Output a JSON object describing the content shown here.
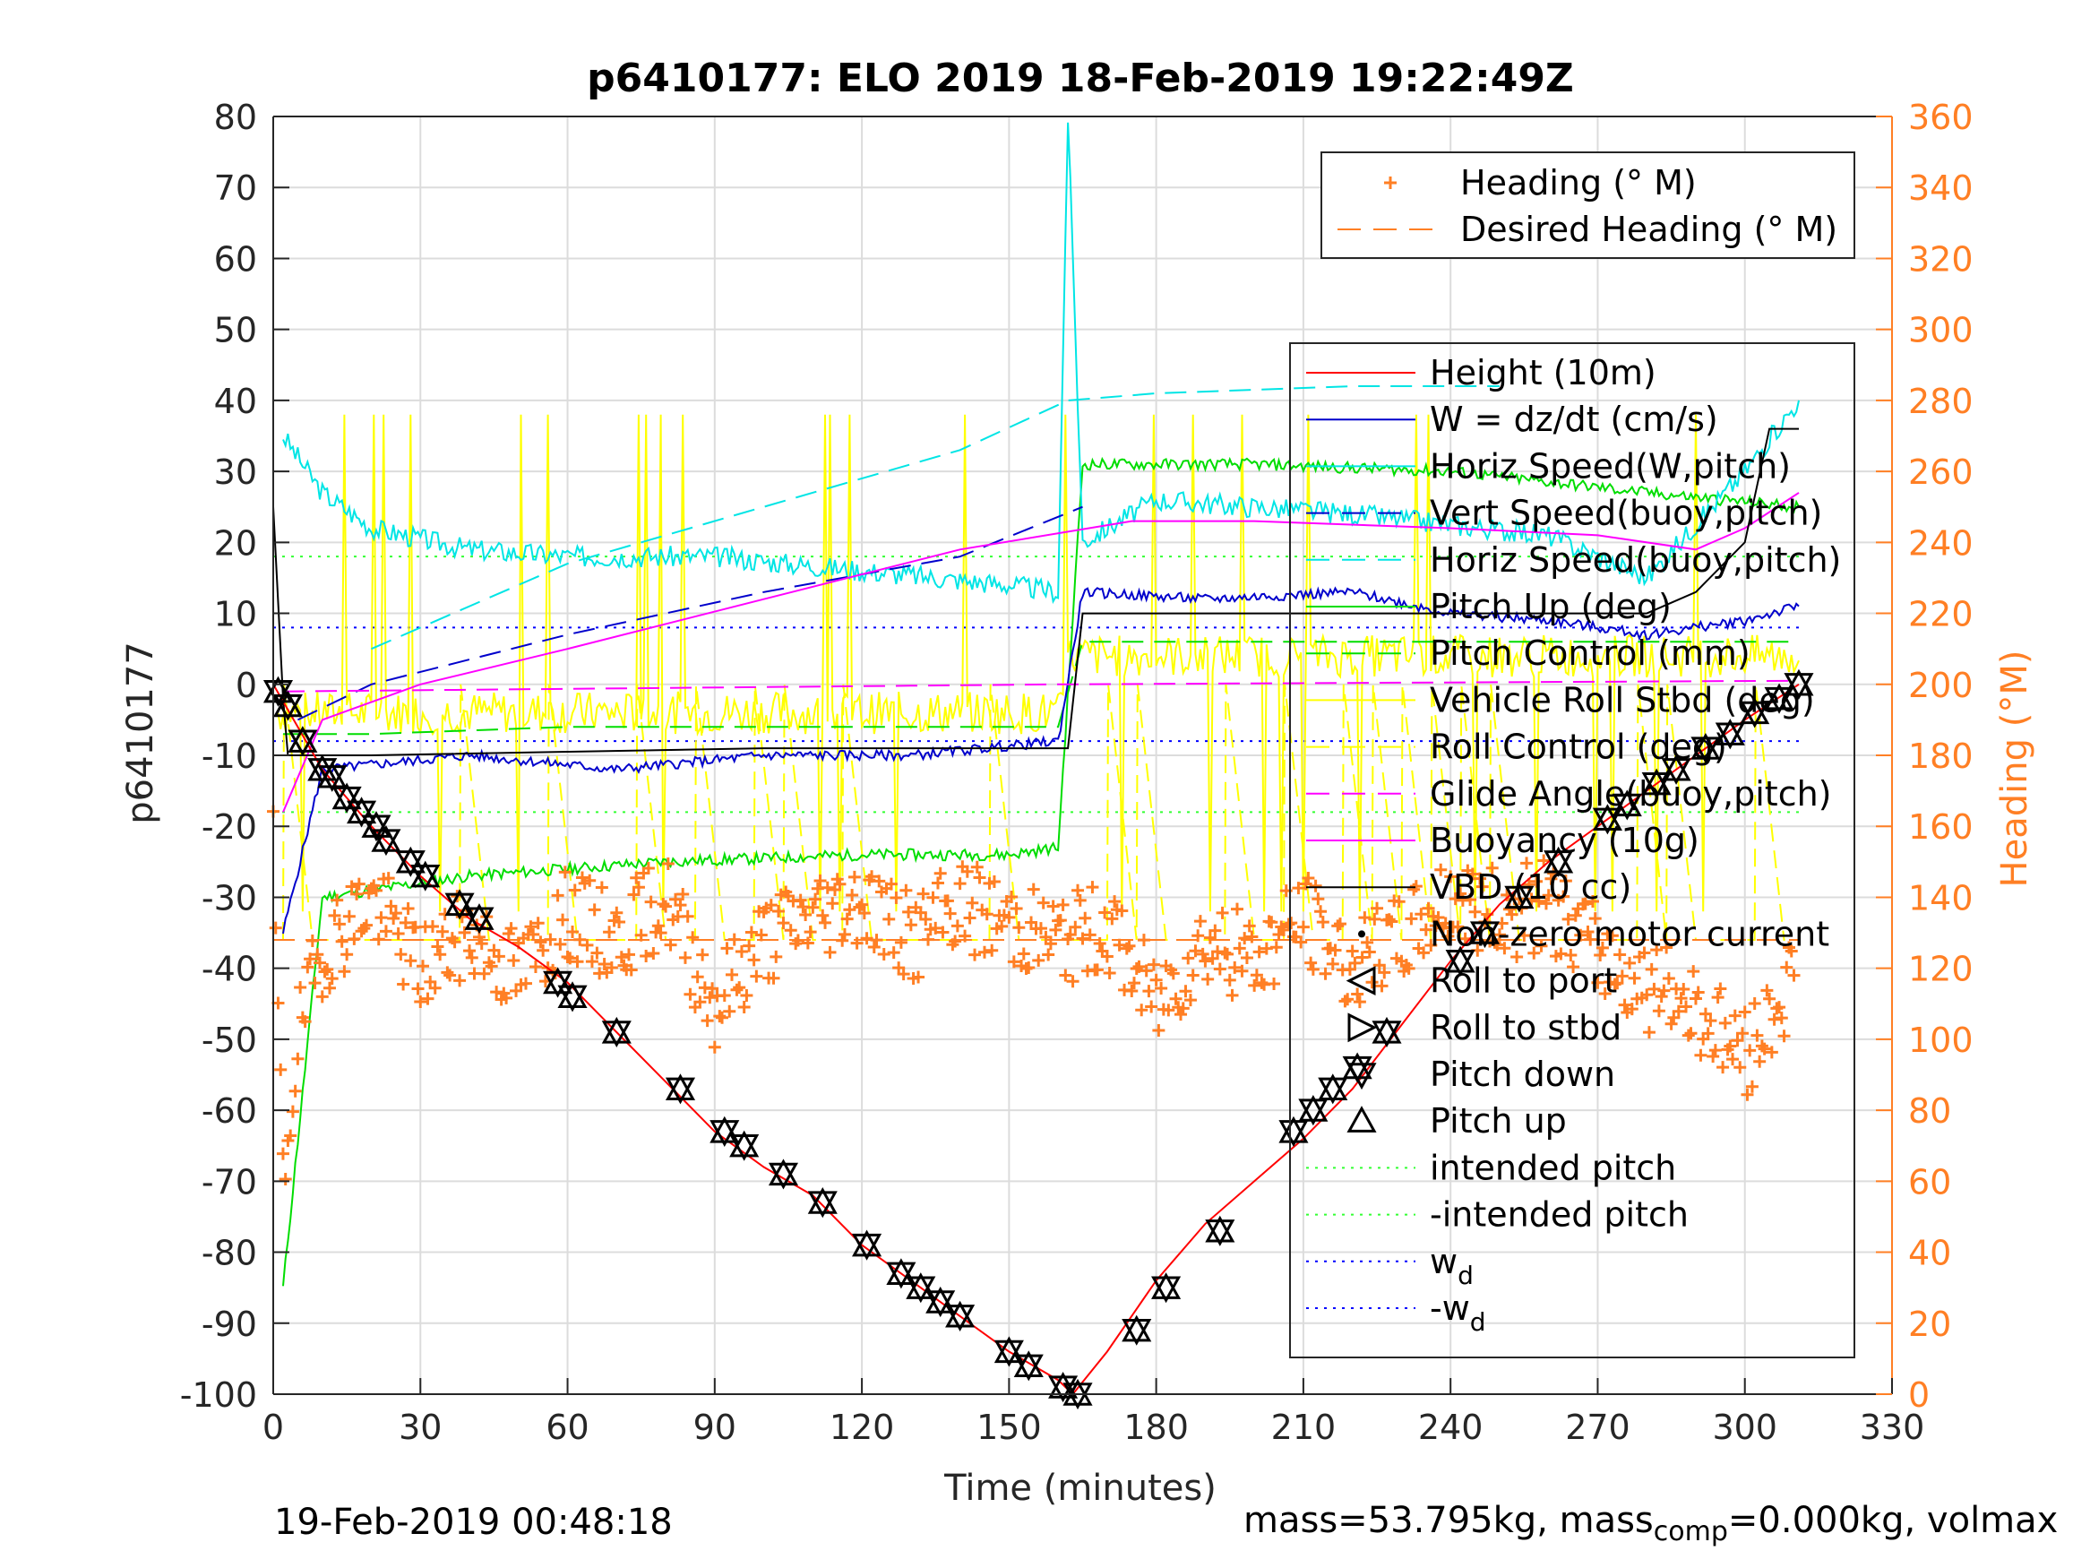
{
  "chart_data": {
    "type": "line",
    "title": "p6410177: ELO 2019 18-Feb-2019 19:22:49Z",
    "xlabel": "Time (minutes)",
    "ylabel_left": "p6410177",
    "ylabel_right": "Heading (°M)",
    "xlim": [
      0,
      330
    ],
    "ylim_left": [
      -100,
      80
    ],
    "ylim_right": [
      0,
      360
    ],
    "x_ticks": [
      0,
      30,
      60,
      90,
      120,
      150,
      180,
      210,
      240,
      270,
      300,
      330
    ],
    "y_left_ticks": [
      -100,
      -90,
      -80,
      -70,
      -60,
      -50,
      -40,
      -30,
      -20,
      -10,
      0,
      10,
      20,
      30,
      40,
      50,
      60,
      70,
      80
    ],
    "y_right_ticks": [
      0,
      20,
      40,
      60,
      80,
      100,
      120,
      140,
      160,
      180,
      200,
      220,
      240,
      260,
      280,
      300,
      320,
      340,
      360
    ],
    "grid": true,
    "colors": {
      "orange": "#FF7F24",
      "red": "#FF0000",
      "blue": "#0000CC",
      "cyan": "#00E5E5",
      "green": "#00DD00",
      "yellow": "#FFFF00",
      "magenta": "#FF00FF",
      "black": "#000000",
      "dot_green": "#33FF33",
      "dot_blue": "#0000FF"
    },
    "legend_top": {
      "placement": "top-right",
      "entries": [
        "Heading (° M)",
        "Desired Heading (° M)"
      ]
    },
    "legend_main": {
      "placement": "right",
      "entries": [
        {
          "label": "Height (10m)"
        },
        {
          "label": "W = dz/dt (cm/s)"
        },
        {
          "label": "Horiz Speed(W,pitch)"
        },
        {
          "label": "Vert Speed(buoy,pitch)"
        },
        {
          "label": "Horiz Speed(buoy,pitch)"
        },
        {
          "label": "Pitch Up (deg)"
        },
        {
          "label": "Pitch Control (mm)"
        },
        {
          "label": "Vehicle Roll Stbd (deg)"
        },
        {
          "label": "Roll Control (deg)"
        },
        {
          "label": "Glide Angle(buoy,pitch)"
        },
        {
          "label": "Buoyancy (10g)"
        },
        {
          "label": "VBD (10 cc)"
        },
        {
          "label": "Non-zero motor current"
        },
        {
          "label": "Roll to port"
        },
        {
          "label": "Roll to stbd"
        },
        {
          "label": "Pitch down"
        },
        {
          "label": "Pitch up"
        },
        {
          "label": "intended pitch"
        },
        {
          "label": "-intended pitch"
        },
        {
          "label": "w",
          "sub": "d"
        },
        {
          "label": "-w",
          "sub": "d"
        }
      ]
    },
    "series": [
      {
        "name": "Height (10m)",
        "x": [
          0,
          10,
          20,
          30,
          40,
          50,
          60,
          70,
          80,
          90,
          100,
          110,
          120,
          130,
          140,
          150,
          160,
          163,
          170,
          180,
          190,
          200,
          210,
          220,
          230,
          240,
          250,
          260,
          270,
          280,
          290,
          300,
          311
        ],
        "y": [
          0,
          -12,
          -20,
          -27,
          -33,
          -37,
          -42,
          -49,
          -56,
          -63,
          -68,
          -72,
          -79,
          -84,
          -89,
          -94,
          -98,
          -100,
          -94,
          -84,
          -76,
          -70,
          -64,
          -57,
          -48,
          -39,
          -31,
          -25,
          -20,
          -15,
          -10,
          -5,
          0
        ]
      },
      {
        "name": "Vert Speed(buoy,pitch)",
        "x": [
          5,
          20,
          60,
          100,
          140,
          165
        ],
        "y": [
          -5,
          0,
          7,
          13,
          18,
          25
        ]
      },
      {
        "name": "Horiz Speed(buoy,pitch) dashed",
        "x": [
          20,
          60,
          100,
          140,
          162,
          180,
          220,
          250
        ],
        "y": [
          5,
          17,
          25,
          33,
          40,
          41,
          42,
          42
        ]
      },
      {
        "name": "Buoyancy (10g)",
        "x": [
          2,
          10,
          30,
          60,
          100,
          140,
          175,
          200,
          240,
          270,
          290,
          300,
          311
        ],
        "y": [
          -18,
          -5,
          0,
          5,
          12,
          19,
          23,
          23,
          22,
          21,
          19,
          22,
          27
        ]
      },
      {
        "name": "Glide Angle(buoy,pitch)",
        "x": [
          2,
          160,
          310
        ],
        "y": [
          -1,
          0,
          0.5
        ]
      },
      {
        "name": "VBD (10 cc)",
        "x": [
          0,
          2,
          3,
          20,
          60,
          100,
          162,
          165,
          200,
          280,
          290,
          300,
          305,
          311
        ],
        "y": [
          25,
          -2,
          -10,
          -10,
          -9.5,
          -9,
          -9,
          10,
          10,
          10,
          13,
          20,
          36,
          36
        ]
      },
      {
        "name": "W = dz/dt (cm/s)",
        "x": [
          2,
          10,
          40,
          70,
          100,
          130,
          160,
          165,
          190,
          220,
          240,
          260,
          280,
          300,
          311
        ],
        "y": [
          -35,
          -12,
          -10,
          -12,
          -10,
          -10,
          -8,
          13,
          12,
          13,
          10,
          9,
          7,
          9,
          11
        ]
      },
      {
        "name": "Horiz Speed(W,pitch)",
        "x": [
          2,
          10,
          20,
          40,
          60,
          90,
          120,
          150,
          160,
          162,
          165,
          180,
          220,
          260,
          280,
          300,
          311
        ],
        "y": [
          35,
          27,
          22,
          19,
          18,
          18,
          16,
          14,
          13,
          80,
          20,
          26,
          24,
          21,
          15,
          30,
          40
        ]
      },
      {
        "name": "Pitch Up (deg)",
        "x": [
          2,
          10,
          40,
          80,
          120,
          150,
          160,
          165,
          200,
          240,
          280,
          311
        ],
        "y": [
          -85,
          -30,
          -27,
          -25,
          -24,
          -24,
          -23,
          31,
          31,
          30,
          27,
          25
        ]
      },
      {
        "name": "Pitch Control (mm)",
        "x": [
          2,
          20,
          60,
          100,
          160,
          165,
          220,
          311
        ],
        "y": [
          -7,
          -7,
          -6,
          -6,
          -6,
          6,
          6,
          6
        ]
      },
      {
        "name": "Heading (° M)",
        "x": [
          0,
          2,
          5,
          10,
          20,
          30,
          40,
          50,
          60,
          70,
          80,
          90,
          100,
          110,
          120,
          130,
          140,
          150,
          160,
          170,
          180,
          190,
          200,
          210,
          220,
          230,
          240,
          250,
          260,
          270,
          280,
          290,
          300,
          310
        ],
        "y": [
          152,
          60,
          100,
          125,
          140,
          120,
          130,
          118,
          135,
          128,
          140,
          110,
          128,
          135,
          140,
          128,
          138,
          133,
          128,
          132,
          110,
          128,
          122,
          135,
          120,
          128,
          140,
          135,
          138,
          125,
          115,
          110,
          95,
          118
        ]
      },
      {
        "name": "Desired Heading (° M)",
        "x": [
          0,
          311
        ],
        "y": [
          128,
          128
        ]
      }
    ],
    "reference_lines": [
      {
        "name": "intended pitch",
        "y": 18
      },
      {
        "name": "-intended pitch",
        "y": -18
      },
      {
        "name": "w_d",
        "y": 8
      },
      {
        "name": "-w_d",
        "y": -8
      }
    ],
    "markers": [
      {
        "x": 1,
        "y": -1
      },
      {
        "x": 3,
        "y": -3
      },
      {
        "x": 6,
        "y": -8
      },
      {
        "x": 10,
        "y": -12
      },
      {
        "x": 12,
        "y": -13
      },
      {
        "x": 15,
        "y": -16
      },
      {
        "x": 18,
        "y": -18
      },
      {
        "x": 21,
        "y": -20
      },
      {
        "x": 23,
        "y": -22
      },
      {
        "x": 28,
        "y": -25
      },
      {
        "x": 31,
        "y": -27
      },
      {
        "x": 38,
        "y": -31
      },
      {
        "x": 42,
        "y": -33
      },
      {
        "x": 58,
        "y": -42
      },
      {
        "x": 61,
        "y": -44
      },
      {
        "x": 70,
        "y": -49
      },
      {
        "x": 83,
        "y": -57
      },
      {
        "x": 92,
        "y": -63
      },
      {
        "x": 96,
        "y": -65
      },
      {
        "x": 104,
        "y": -69
      },
      {
        "x": 112,
        "y": -73
      },
      {
        "x": 121,
        "y": -79
      },
      {
        "x": 128,
        "y": -83
      },
      {
        "x": 132,
        "y": -85
      },
      {
        "x": 136,
        "y": -87
      },
      {
        "x": 140,
        "y": -89
      },
      {
        "x": 150,
        "y": -94
      },
      {
        "x": 154,
        "y": -96
      },
      {
        "x": 161,
        "y": -99
      },
      {
        "x": 164,
        "y": -100
      },
      {
        "x": 176,
        "y": -91
      },
      {
        "x": 182,
        "y": -85
      },
      {
        "x": 193,
        "y": -77
      },
      {
        "x": 208,
        "y": -63
      },
      {
        "x": 212,
        "y": -60
      },
      {
        "x": 216,
        "y": -57
      },
      {
        "x": 221,
        "y": -54
      },
      {
        "x": 227,
        "y": -49
      },
      {
        "x": 242,
        "y": -39
      },
      {
        "x": 247,
        "y": -35
      },
      {
        "x": 254,
        "y": -30
      },
      {
        "x": 262,
        "y": -25
      },
      {
        "x": 272,
        "y": -19
      },
      {
        "x": 276,
        "y": -17
      },
      {
        "x": 282,
        "y": -14
      },
      {
        "x": 286,
        "y": -12
      },
      {
        "x": 292,
        "y": -9
      },
      {
        "x": 297,
        "y": -7
      },
      {
        "x": 302,
        "y": -4
      },
      {
        "x": 307,
        "y": -2
      },
      {
        "x": 311,
        "y": 0
      }
    ]
  },
  "footer": {
    "timestamp": "19-Feb-2019 00:48:18",
    "mass_text": "mass=53.795kg, mass",
    "mass_sub": "comp",
    "mass_tail": "=0.000kg, volmax"
  }
}
